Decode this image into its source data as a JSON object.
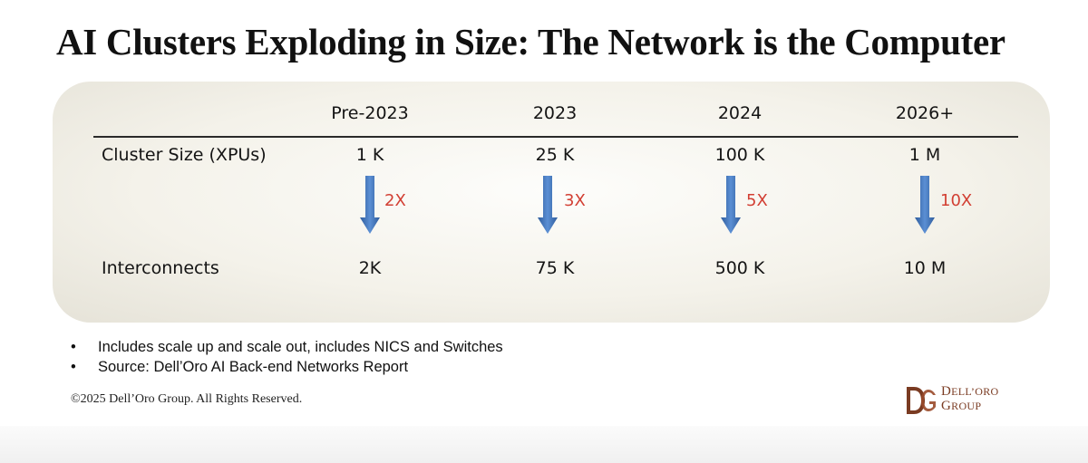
{
  "title": "AI Clusters Exploding in Size: The Network is the Computer",
  "table": {
    "columns": [
      "Pre-2023",
      "2023",
      "2024",
      "2026+"
    ],
    "rows": {
      "cluster_size": {
        "label": "Cluster Size (XPUs)",
        "values": [
          "1 K",
          "25 K",
          "100 K",
          "1 M"
        ]
      },
      "interconnects": {
        "label": "Interconnects",
        "values": [
          "2K",
          "75 K",
          "500 K",
          "10 M"
        ]
      }
    },
    "multipliers": [
      "2X",
      "3X",
      "5X",
      "10X"
    ]
  },
  "notes": [
    "Includes scale up and scale out, includes NICS and Switches",
    "Source: Dell’Oro AI Back-end Networks Report"
  ],
  "bullet": "•",
  "copyright": "©2025 Dell’Oro Group. All Rights Reserved.",
  "logo": {
    "line1_cap": "D",
    "line1_rest": "ELL’ORO",
    "line2_cap": "G",
    "line2_rest": "ROUP",
    "mark": "DG"
  },
  "colors": {
    "multiplier": "#d23f33",
    "arrow_top": "#3f6fb0",
    "arrow_bottom": "#5a8fd3",
    "logo": "#7a3b22"
  },
  "icons": {
    "arrow": "down-arrow-icon",
    "logo": "dell-oro-logo-icon"
  }
}
